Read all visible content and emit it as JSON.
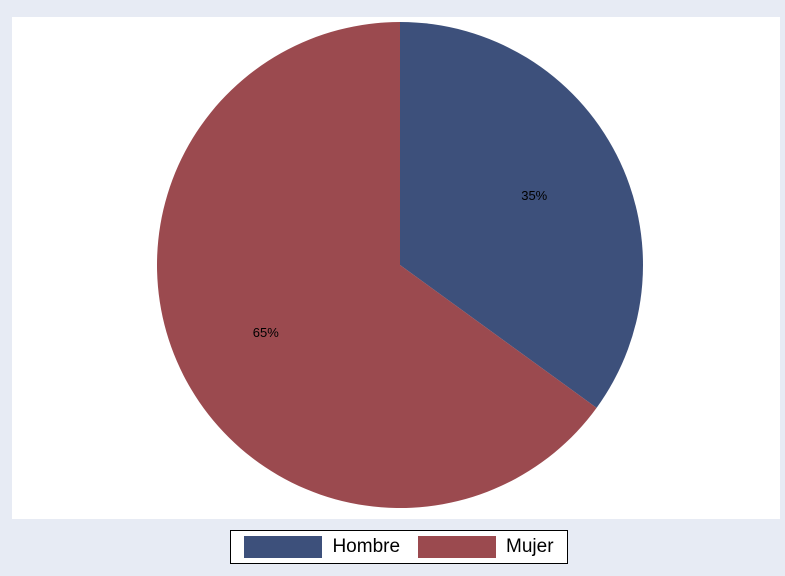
{
  "chart_data": {
    "type": "pie",
    "categories": [
      "Hombre",
      "Mujer"
    ],
    "values": [
      35,
      65
    ],
    "labels": [
      "35%",
      "65%"
    ],
    "colors": [
      "#3d507b",
      "#9b4a4f"
    ],
    "start_angle": "12 o'clock, clockwise",
    "legend": {
      "placement": "bottom",
      "entries": [
        "Hombre",
        "Mujer"
      ]
    }
  },
  "legend": {
    "items": [
      {
        "label": "Hombre",
        "color": "#3d507b"
      },
      {
        "label": "Mujer",
        "color": "#9b4a4f"
      }
    ]
  }
}
